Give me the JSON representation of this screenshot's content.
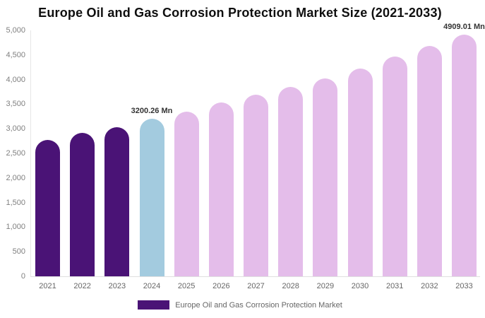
{
  "title": "Europe Oil and Gas Corrosion Protection Market Size (2021-2033)",
  "colors": {
    "historical_bar": "#4a1376",
    "base_year_bar": "#a3cbdf",
    "forecast_bar": "#e4bdea",
    "title_text": "#0f0f0f",
    "axis_text": "#808080",
    "data_label_text": "#333333",
    "axis_line": "#e6e6e6"
  },
  "chart_data": {
    "type": "bar",
    "title": "Europe Oil and Gas Corrosion Protection Market Size (2021-2033)",
    "categories": [
      "2021",
      "2022",
      "2023",
      "2024",
      "2025",
      "2026",
      "2027",
      "2028",
      "2029",
      "2030",
      "2031",
      "2032",
      "2033"
    ],
    "values": [
      2770,
      2915,
      3035,
      3200.26,
      3345,
      3535,
      3690,
      3855,
      4025,
      4225,
      4470,
      4685,
      4909.01
    ],
    "unit": "Mn",
    "bar_colors": [
      "#4a1376",
      "#4a1376",
      "#4a1376",
      "#a3cbdf",
      "#e4bdea",
      "#e4bdea",
      "#e4bdea",
      "#e4bdea",
      "#e4bdea",
      "#e4bdea",
      "#e4bdea",
      "#e4bdea",
      "#e4bdea"
    ],
    "xlabel": "",
    "ylabel": "",
    "ylim": [
      0,
      5000
    ],
    "ytick_step": 500,
    "ytick_labels": [
      "0",
      "500",
      "1,000",
      "1,500",
      "2,000",
      "2,500",
      "3,000",
      "3,500",
      "4,000",
      "4,500",
      "5,000"
    ],
    "grid": false,
    "data_labels": [
      {
        "category": "2024",
        "text": "3200.26 Mn"
      },
      {
        "category": "2033",
        "text": "4909.01 Mn"
      }
    ],
    "legend": {
      "position": "bottom",
      "label": "Europe Oil and Gas Corrosion Protection Market",
      "swatch_color": "#4a1376"
    }
  }
}
